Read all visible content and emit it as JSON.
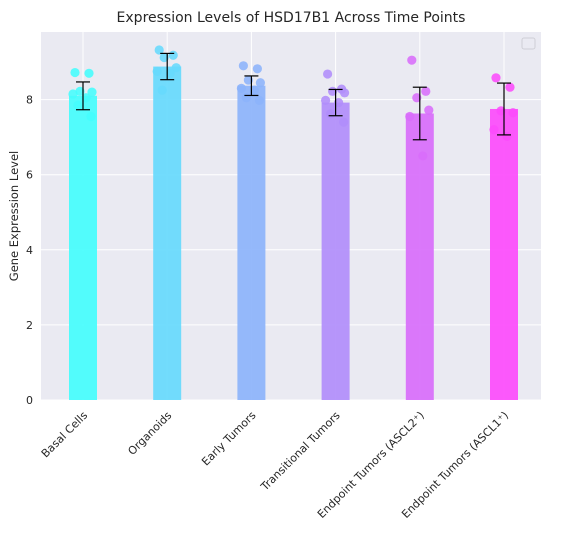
{
  "chart_data": {
    "type": "bar",
    "title": "Expression Levels of HSD17B1 Across Time Points",
    "xlabel": "",
    "ylabel": "Gene Expression Level",
    "ylim": [
      0,
      9.8
    ],
    "yticks": [
      0,
      2,
      4,
      6,
      8
    ],
    "grid": true,
    "legend": "top-right (empty)",
    "categories": [
      "Basal Cells",
      "Organoids",
      "Early Tumors",
      "Transitional Tumors",
      "Endpoint Tumors (ASCL2⁺)",
      "Endpoint Tumors (ASCL1⁺)"
    ],
    "values": [
      8.1,
      8.88,
      8.37,
      7.92,
      7.63,
      7.75
    ],
    "errors": [
      0.37,
      0.35,
      0.26,
      0.35,
      0.7,
      0.69
    ],
    "colors": [
      "#44fdfd",
      "#66d9fd",
      "#8cb3fb",
      "#b18dfb",
      "#d86dfb",
      "#fc4bfc"
    ],
    "points": [
      [
        8.72,
        8.7,
        8.22,
        8.2,
        8.15,
        8.05,
        7.85,
        7.55
      ],
      [
        9.32,
        9.18,
        9.12,
        8.85,
        8.75,
        8.7,
        8.25
      ],
      [
        8.9,
        8.82,
        8.52,
        8.45,
        8.3,
        8.25,
        8.05,
        7.98
      ],
      [
        8.68,
        8.28,
        8.22,
        8.18,
        7.98,
        7.92,
        7.62,
        7.4
      ],
      [
        9.05,
        8.22,
        8.05,
        7.72,
        7.55,
        6.5
      ],
      [
        8.58,
        8.33,
        7.7,
        7.65,
        7.2,
        7.02
      ]
    ]
  }
}
